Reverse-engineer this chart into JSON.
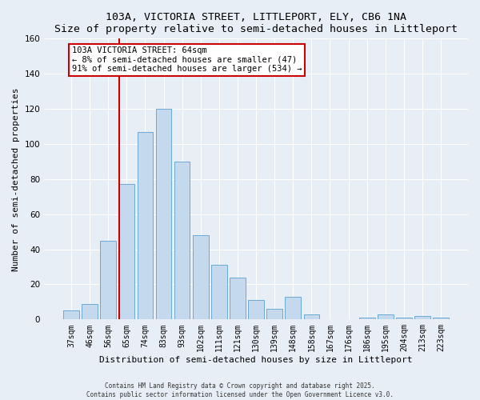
{
  "title1": "103A, VICTORIA STREET, LITTLEPORT, ELY, CB6 1NA",
  "title2": "Size of property relative to semi-detached houses in Littleport",
  "xlabel": "Distribution of semi-detached houses by size in Littleport",
  "ylabel": "Number of semi-detached properties",
  "bar_labels": [
    "37sqm",
    "46sqm",
    "56sqm",
    "65sqm",
    "74sqm",
    "83sqm",
    "93sqm",
    "102sqm",
    "111sqm",
    "121sqm",
    "130sqm",
    "139sqm",
    "148sqm",
    "158sqm",
    "167sqm",
    "176sqm",
    "186sqm",
    "195sqm",
    "204sqm",
    "213sqm",
    "223sqm"
  ],
  "bar_values": [
    5,
    9,
    45,
    77,
    107,
    120,
    90,
    48,
    31,
    24,
    11,
    6,
    13,
    3,
    0,
    0,
    1,
    3,
    1,
    2,
    1
  ],
  "bar_color": "#c5d9ee",
  "bar_edge_color": "#6aaad4",
  "ylim": [
    0,
    160
  ],
  "yticks": [
    0,
    20,
    40,
    60,
    80,
    100,
    120,
    140,
    160
  ],
  "property_bin_index": 3,
  "property_line_label": "103A VICTORIA STREET: 64sqm",
  "annotation_line1": "← 8% of semi-detached houses are smaller (47)",
  "annotation_line2": "91% of semi-detached houses are larger (534) →",
  "line_color": "#cc0000",
  "bg_color": "#e8eef5",
  "grid_color": "#ffffff",
  "footer1": "Contains HM Land Registry data © Crown copyright and database right 2025.",
  "footer2": "Contains public sector information licensed under the Open Government Licence v3.0.",
  "title_fontsize": 9.5,
  "label_fontsize": 8,
  "tick_fontsize": 7,
  "annot_fontsize": 7.5,
  "footer_fontsize": 5.5
}
